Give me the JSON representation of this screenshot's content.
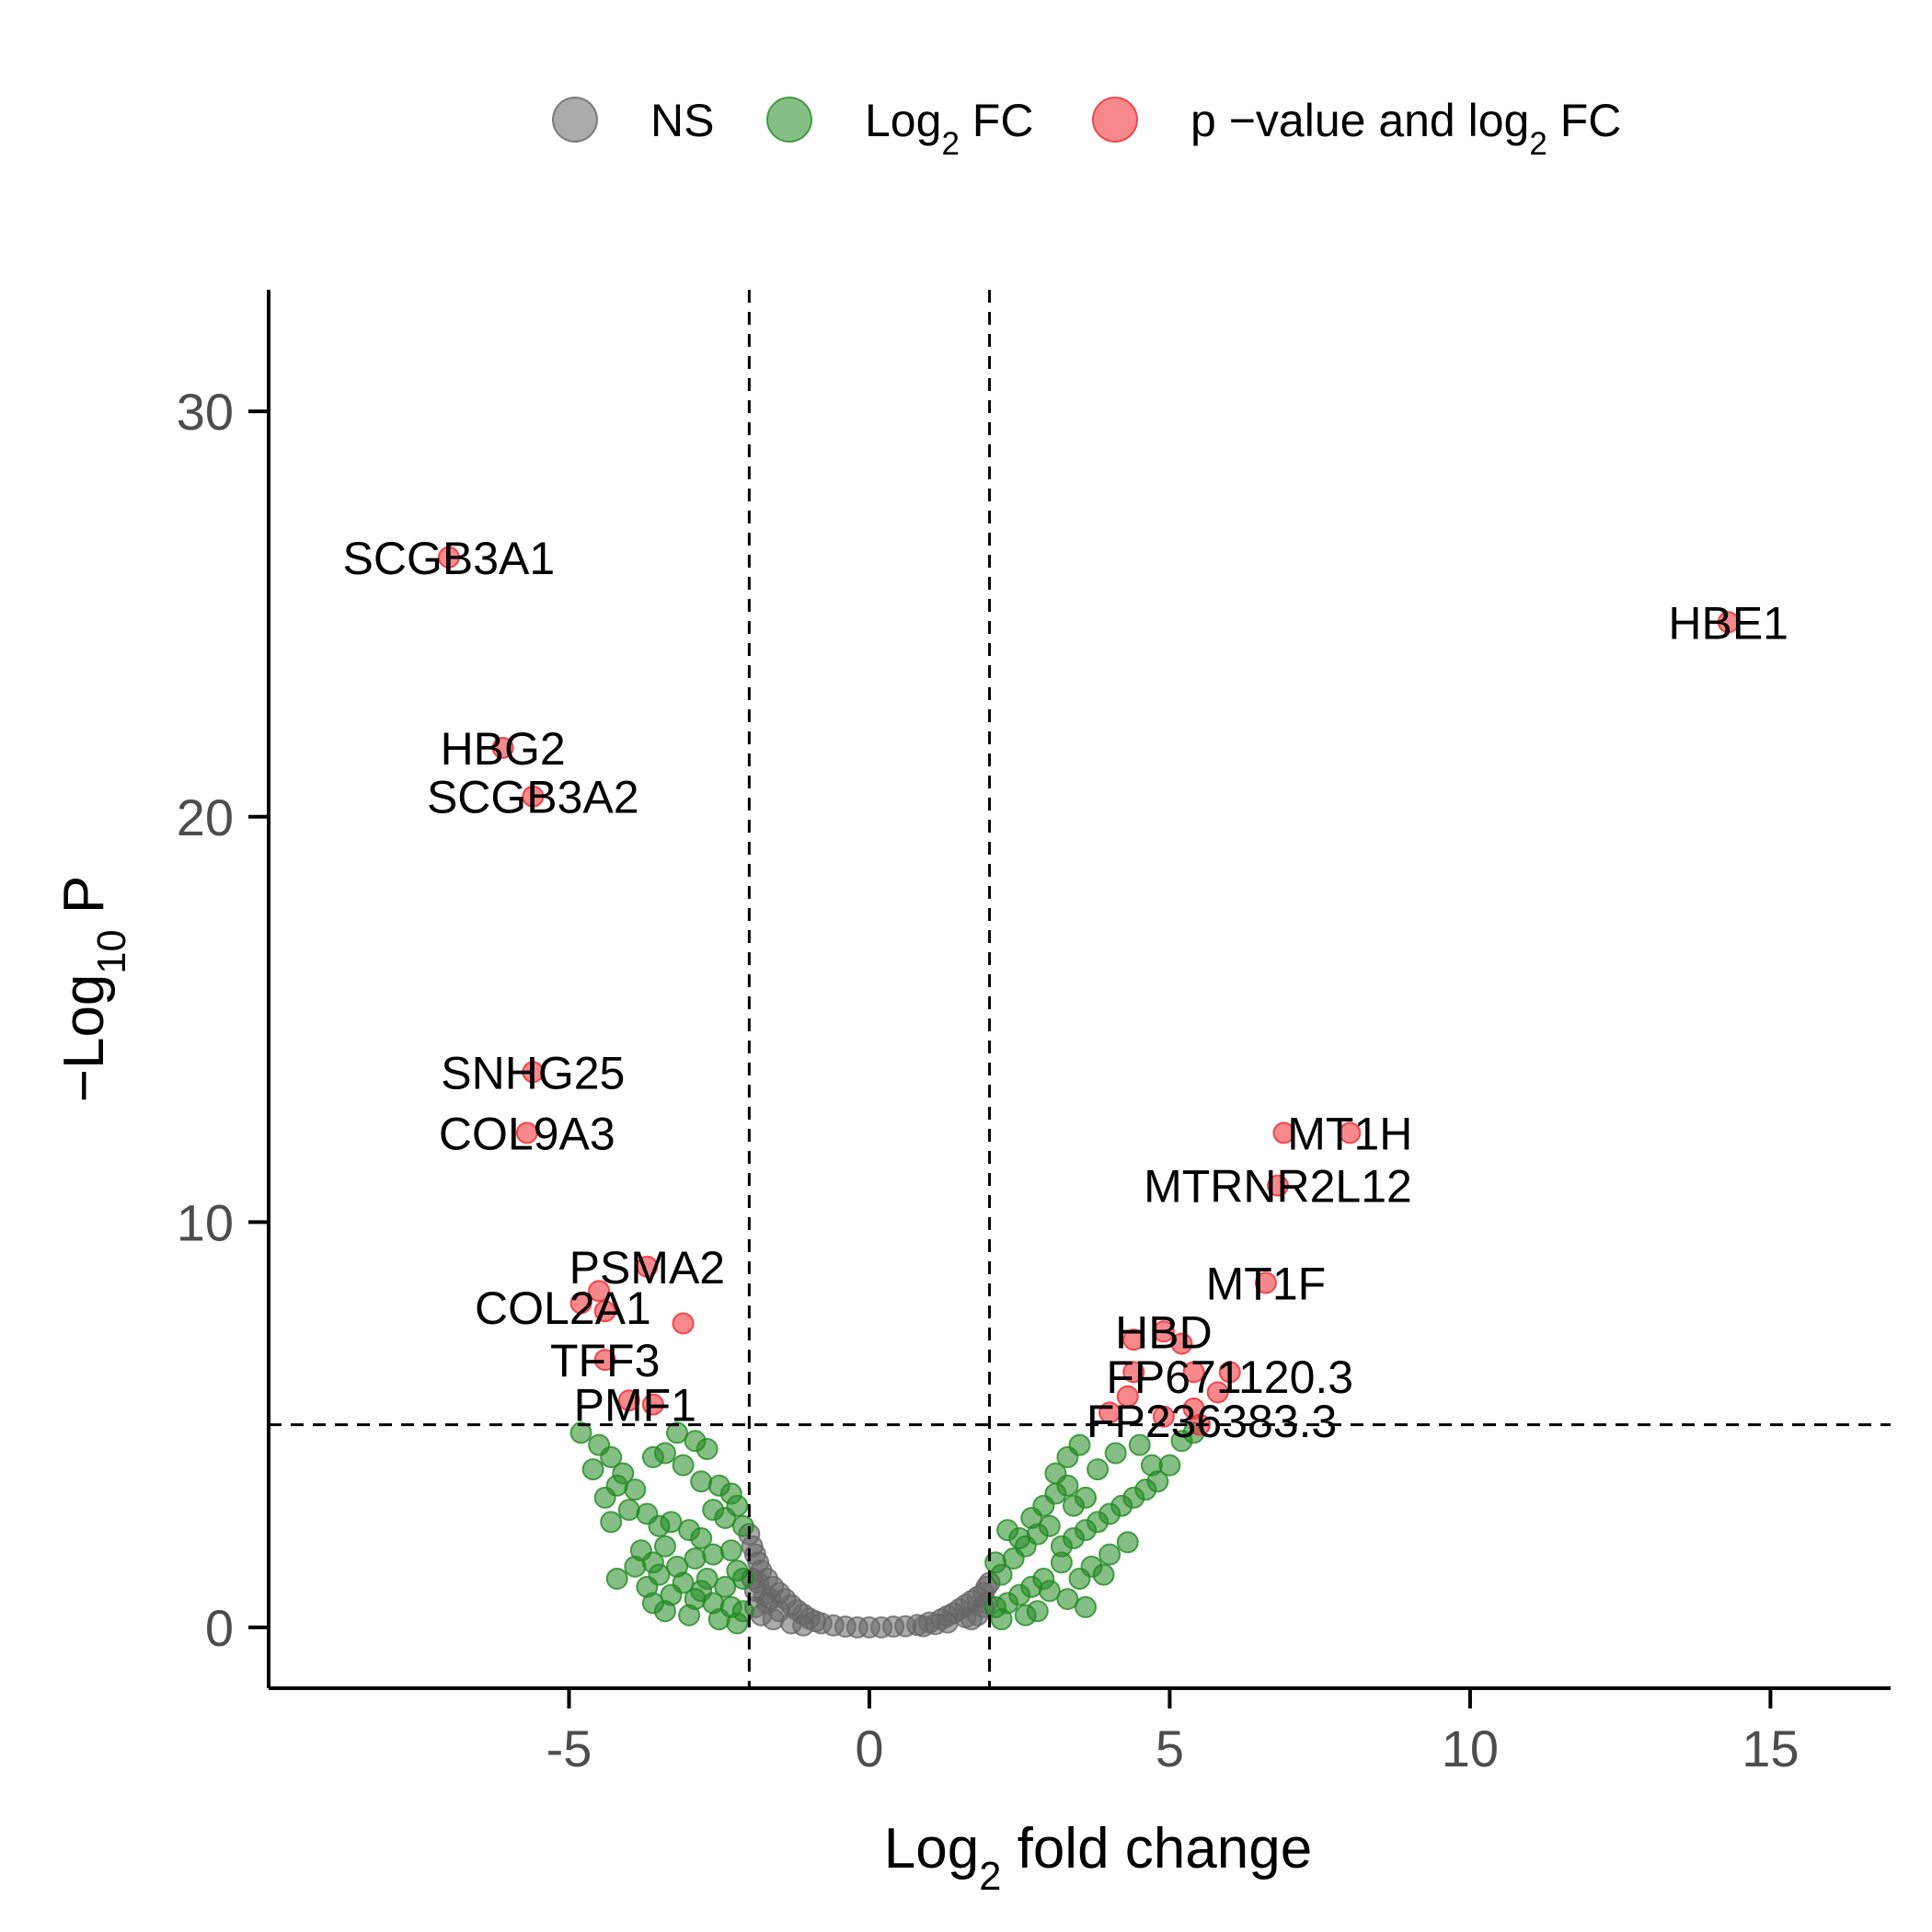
{
  "colors": {
    "ns": "#666666",
    "log2fc": "#228b22",
    "both": "#f0282d",
    "axis": "#000000",
    "background": "#ffffff"
  },
  "legend": {
    "placement": "top",
    "items": [
      {
        "key": "ns",
        "label": "NS"
      },
      {
        "key": "log2fc",
        "label_parts": [
          "Log",
          "2",
          " FC"
        ]
      },
      {
        "key": "both",
        "label_parts": [
          "p −value and log",
          "2",
          " FC"
        ]
      }
    ]
  },
  "chart_data": {
    "type": "scatter",
    "title": "",
    "xlabel_parts": [
      "Log",
      "2",
      " fold change"
    ],
    "ylabel_parts": [
      "−Log",
      "10",
      " P"
    ],
    "xlim": [
      -10,
      17
    ],
    "ylim": [
      -1.5,
      33
    ],
    "x_ticks": [
      -5,
      0,
      5,
      10,
      15
    ],
    "x_tick_labels": [
      "-5",
      "0",
      "5",
      "10",
      "15"
    ],
    "y_ticks": [
      0,
      10,
      20,
      30
    ],
    "y_tick_labels": [
      "0",
      "10",
      "20",
      "30"
    ],
    "fc_cutoff": 2,
    "p_cutoff": 5,
    "grid": false,
    "series": [
      {
        "key": "ns",
        "name": "NS",
        "points": [
          [
            -2.0,
            2.3
          ],
          [
            -1.95,
            2.0
          ],
          [
            -1.9,
            1.8
          ],
          [
            -1.85,
            1.6
          ],
          [
            -1.8,
            1.4
          ],
          [
            -1.7,
            1.2
          ],
          [
            -1.6,
            1.0
          ],
          [
            -1.5,
            0.85
          ],
          [
            -1.4,
            0.7
          ],
          [
            -1.3,
            0.55
          ],
          [
            -1.2,
            0.42
          ],
          [
            -1.1,
            0.32
          ],
          [
            -1.0,
            0.22
          ],
          [
            -0.9,
            0.15
          ],
          [
            -0.8,
            0.1
          ],
          [
            -0.6,
            0.05
          ],
          [
            -0.4,
            0.02
          ],
          [
            -0.2,
            0.0
          ],
          [
            0.0,
            0.0
          ],
          [
            0.2,
            0.0
          ],
          [
            0.4,
            0.02
          ],
          [
            0.6,
            0.03
          ],
          [
            0.8,
            0.06
          ],
          [
            1.0,
            0.12
          ],
          [
            1.2,
            0.2
          ],
          [
            1.3,
            0.28
          ],
          [
            1.4,
            0.35
          ],
          [
            1.5,
            0.45
          ],
          [
            1.6,
            0.55
          ],
          [
            1.7,
            0.65
          ],
          [
            1.8,
            0.75
          ],
          [
            1.9,
            0.85
          ],
          [
            1.95,
            1.0
          ],
          [
            2.0,
            1.1
          ],
          [
            -1.9,
            0.5
          ],
          [
            -1.8,
            0.3
          ],
          [
            -1.7,
            0.6
          ],
          [
            -1.6,
            0.2
          ],
          [
            -1.5,
            0.4
          ],
          [
            -1.95,
            1.2
          ],
          [
            -1.9,
            0.9
          ],
          [
            -1.85,
            1.1
          ],
          [
            -1.75,
            0.8
          ],
          [
            -1.65,
            0.7
          ],
          [
            1.8,
            0.3
          ],
          [
            1.9,
            0.5
          ],
          [
            1.7,
            0.2
          ],
          [
            1.6,
            0.25
          ],
          [
            1.95,
            0.6
          ],
          [
            -1.3,
            0.1
          ],
          [
            -1.1,
            0.05
          ],
          [
            1.1,
            0.08
          ],
          [
            1.3,
            0.12
          ],
          [
            0.9,
            0.03
          ]
        ]
      },
      {
        "key": "log2fc",
        "name": "Log2 FC",
        "points": [
          [
            -4.8,
            4.8
          ],
          [
            -4.5,
            4.5
          ],
          [
            -4.3,
            4.2
          ],
          [
            -4.1,
            3.8
          ],
          [
            -4.6,
            3.9
          ],
          [
            -4.2,
            3.5
          ],
          [
            -3.9,
            3.4
          ],
          [
            -4.4,
            3.2
          ],
          [
            -4.0,
            2.9
          ],
          [
            -3.7,
            2.8
          ],
          [
            -4.3,
            2.6
          ],
          [
            -3.5,
            2.5
          ],
          [
            -3.3,
            2.6
          ],
          [
            -3.6,
            4.2
          ],
          [
            -3.4,
            4.3
          ],
          [
            -3.2,
            4.8
          ],
          [
            -2.9,
            4.6
          ],
          [
            -2.7,
            4.4
          ],
          [
            -3.1,
            4.0
          ],
          [
            -2.8,
            3.6
          ],
          [
            -2.5,
            3.5
          ],
          [
            -2.3,
            3.3
          ],
          [
            -2.2,
            3.0
          ],
          [
            -2.6,
            2.9
          ],
          [
            -2.4,
            2.7
          ],
          [
            -3.0,
            2.4
          ],
          [
            -2.8,
            2.2
          ],
          [
            -2.1,
            2.5
          ],
          [
            -3.4,
            2.0
          ],
          [
            -3.8,
            1.9
          ],
          [
            -3.6,
            1.6
          ],
          [
            -3.2,
            1.5
          ],
          [
            -2.9,
            1.7
          ],
          [
            -2.6,
            1.8
          ],
          [
            -2.3,
            1.9
          ],
          [
            -3.5,
            1.3
          ],
          [
            -3.1,
            1.1
          ],
          [
            -2.7,
            1.2
          ],
          [
            -2.4,
            1.0
          ],
          [
            -2.2,
            1.4
          ],
          [
            -3.3,
            0.8
          ],
          [
            -2.9,
            0.7
          ],
          [
            -2.6,
            0.6
          ],
          [
            -2.3,
            0.5
          ],
          [
            -2.1,
            0.4
          ],
          [
            -3.6,
            0.6
          ],
          [
            -3.0,
            0.3
          ],
          [
            -2.5,
            0.2
          ],
          [
            -2.2,
            0.1
          ],
          [
            -2.8,
            0.9
          ],
          [
            -3.9,
            1.5
          ],
          [
            -4.2,
            1.2
          ],
          [
            -3.7,
            1.0
          ],
          [
            -3.4,
            0.4
          ],
          [
            -2.1,
            1.2
          ],
          [
            2.1,
            0.5
          ],
          [
            2.3,
            0.6
          ],
          [
            2.5,
            0.8
          ],
          [
            2.7,
            1.0
          ],
          [
            2.9,
            1.2
          ],
          [
            2.2,
            1.3
          ],
          [
            2.4,
            1.7
          ],
          [
            2.6,
            2.0
          ],
          [
            2.8,
            2.3
          ],
          [
            3.0,
            2.5
          ],
          [
            2.5,
            2.2
          ],
          [
            2.7,
            2.7
          ],
          [
            2.9,
            3.0
          ],
          [
            3.1,
            3.3
          ],
          [
            3.3,
            3.5
          ],
          [
            3.2,
            2.0
          ],
          [
            3.4,
            2.2
          ],
          [
            3.6,
            2.4
          ],
          [
            3.8,
            2.6
          ],
          [
            4.0,
            2.8
          ],
          [
            4.2,
            3.0
          ],
          [
            4.4,
            3.2
          ],
          [
            4.6,
            3.4
          ],
          [
            4.8,
            3.6
          ],
          [
            5.0,
            4.0
          ],
          [
            3.1,
            3.8
          ],
          [
            3.3,
            4.2
          ],
          [
            3.5,
            4.5
          ],
          [
            3.8,
            3.9
          ],
          [
            4.1,
            4.3
          ],
          [
            4.5,
            4.5
          ],
          [
            5.2,
            4.6
          ],
          [
            5.4,
            4.8
          ],
          [
            3.7,
            1.5
          ],
          [
            3.5,
            1.2
          ],
          [
            3.0,
            0.9
          ],
          [
            3.3,
            0.7
          ],
          [
            2.8,
            0.4
          ],
          [
            3.6,
            0.5
          ],
          [
            4.0,
            1.8
          ],
          [
            3.9,
            1.3
          ],
          [
            4.3,
            2.1
          ],
          [
            2.2,
            0.2
          ],
          [
            2.6,
            0.3
          ],
          [
            3.2,
            1.6
          ],
          [
            3.4,
            3.0
          ],
          [
            3.6,
            3.2
          ],
          [
            2.3,
            2.4
          ],
          [
            2.1,
            1.6
          ],
          [
            4.7,
            4.0
          ]
        ]
      },
      {
        "key": "both",
        "name": "p-value and log2 FC",
        "points": [
          [
            -7.0,
            26.4
          ],
          [
            -6.1,
            21.7
          ],
          [
            -5.6,
            20.5
          ],
          [
            -5.6,
            13.7
          ],
          [
            -5.7,
            12.2
          ],
          [
            -3.7,
            8.9
          ],
          [
            -4.5,
            8.3
          ],
          [
            -4.8,
            8.0
          ],
          [
            -4.4,
            7.8
          ],
          [
            -3.1,
            7.5
          ],
          [
            -4.4,
            6.6
          ],
          [
            -4.0,
            5.6
          ],
          [
            -3.6,
            5.5
          ],
          [
            14.3,
            24.8
          ],
          [
            8.0,
            12.2
          ],
          [
            6.9,
            12.2
          ],
          [
            6.8,
            10.9
          ],
          [
            6.6,
            8.5
          ],
          [
            4.4,
            7.1
          ],
          [
            4.9,
            7.3
          ],
          [
            5.2,
            7.0
          ],
          [
            4.4,
            6.3
          ],
          [
            5.4,
            6.3
          ],
          [
            6.0,
            6.3
          ],
          [
            4.3,
            5.7
          ],
          [
            5.8,
            5.8
          ],
          [
            4.0,
            5.3
          ],
          [
            5.4,
            5.4
          ],
          [
            4.9,
            5.2
          ],
          [
            5.5,
            5.0
          ]
        ]
      }
    ],
    "labels": [
      {
        "text": "SCGB3A1",
        "x": -7.0,
        "y": 26.4,
        "anchor": "middle"
      },
      {
        "text": "HBG2",
        "x": -6.1,
        "y": 21.7,
        "anchor": "middle"
      },
      {
        "text": "SCGB3A2",
        "x": -5.6,
        "y": 20.5,
        "anchor": "middle"
      },
      {
        "text": "SNHG25",
        "x": -5.6,
        "y": 13.7,
        "anchor": "middle"
      },
      {
        "text": "COL9A3",
        "x": -5.7,
        "y": 12.2,
        "anchor": "middle"
      },
      {
        "text": "PSMA2",
        "x": -3.7,
        "y": 8.9,
        "anchor": "middle"
      },
      {
        "text": "COL2A1",
        "x": -5.1,
        "y": 7.9,
        "anchor": "middle"
      },
      {
        "text": "TFF3",
        "x": -4.4,
        "y": 6.6,
        "anchor": "middle"
      },
      {
        "text": "PMF1",
        "x": -3.9,
        "y": 5.5,
        "anchor": "middle"
      },
      {
        "text": "HBE1",
        "x": 14.3,
        "y": 24.8,
        "anchor": "middle"
      },
      {
        "text": "MT1H",
        "x": 8.0,
        "y": 12.2,
        "anchor": "middle"
      },
      {
        "text": "MTRNR2L12",
        "x": 6.8,
        "y": 10.9,
        "anchor": "middle"
      },
      {
        "text": "MT1F",
        "x": 6.6,
        "y": 8.5,
        "anchor": "middle"
      },
      {
        "text": "HBD",
        "x": 4.9,
        "y": 7.3,
        "anchor": "middle"
      },
      {
        "text": "FP671120.3",
        "x": 6.0,
        "y": 6.2,
        "anchor": "middle"
      },
      {
        "text": "FP236383.3",
        "x": 5.7,
        "y": 5.1,
        "anchor": "middle"
      }
    ]
  }
}
